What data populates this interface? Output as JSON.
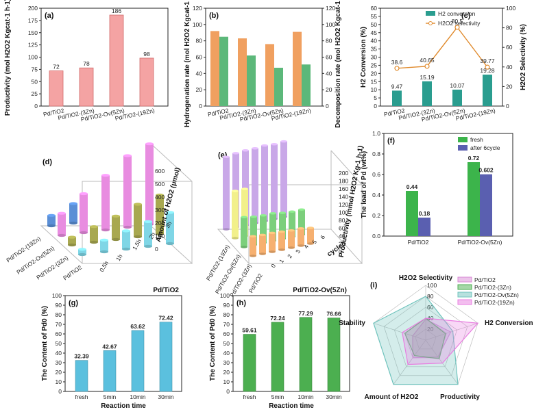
{
  "chart_data": [
    {
      "id": "a",
      "panel_label": "(a)",
      "type": "bar",
      "categories": [
        "Pd/TiO2",
        "Pd/TiO2-(3Zn)",
        "Pd/TiO2-Ov(5Zn)",
        "Pd/TiO2-(19Zn)"
      ],
      "values": [
        72,
        78,
        186,
        98
      ],
      "value_labels": [
        "72",
        "78",
        "186",
        "98"
      ],
      "ylabel": "Productivity (mol H2O2 Kgcat-1 h-1)",
      "ylim": [
        0,
        200
      ],
      "yticks": [
        "0",
        "25",
        "50",
        "75",
        "100",
        "125",
        "150",
        "175",
        "200"
      ],
      "color": "#f4a3a3"
    },
    {
      "id": "b",
      "panel_label": "(b)",
      "type": "bar",
      "categories": [
        "Pd/TiO2",
        "Pd/TiO2-(3Zn)",
        "Pd/TiO2-Ov(5Zn)",
        "Pd/TiO2-(19Zn)"
      ],
      "series": [
        {
          "name": "Hydrogenation rate",
          "values": [
            92,
            83,
            76,
            91
          ],
          "color": "#f0a060"
        },
        {
          "name": "Decomposition rate",
          "values": [
            85,
            62,
            47,
            51
          ],
          "color": "#5cb87a"
        }
      ],
      "ylabel_left": "Hydrogenation rate (mol H2O2 Kgcat-1 h-1)",
      "ylabel_right": "Decomposition rate (mol H2O2 Kgcat-1 h-1)",
      "ylim": [
        0,
        120
      ],
      "yticks_left": [
        "0",
        "20",
        "40",
        "60",
        "80",
        "100",
        "120"
      ],
      "yticks_right": [
        "0",
        "20",
        "40",
        "60",
        "80",
        "100",
        "120"
      ]
    },
    {
      "id": "c",
      "panel_label": "(c)",
      "type": "bar+line",
      "categories": [
        "Pd/TiO2",
        "Pd/TiO2-(3Zn)",
        "Pd/TiO2-Ov(5Zn)",
        "Pd/TiO2-(19Zn)"
      ],
      "bar_values": [
        9.47,
        15.19,
        10.07,
        19.28
      ],
      "bar_labels": [
        "9.47",
        "15.19",
        "10.07",
        "19.28"
      ],
      "line_values": [
        38.6,
        40.65,
        80.5,
        39.77
      ],
      "line_labels": [
        "38.6",
        "40.65",
        "80.5",
        "39.77"
      ],
      "legend": [
        "H2 conversion",
        "H2O2 selectivity"
      ],
      "ylabel_left": "H2 Conversion (%)",
      "ylabel_right": "H2O2 Selectivity (%)",
      "ylim_left": [
        0,
        60
      ],
      "ylim_right": [
        0,
        100
      ],
      "yticks_left": [
        "0",
        "5",
        "10",
        "15",
        "20",
        "25",
        "30",
        "35",
        "40",
        "45",
        "50",
        "55",
        "60"
      ],
      "yticks_right": [
        "0",
        "20",
        "40",
        "60",
        "80",
        "100"
      ],
      "bar_color": "#2a9d8f",
      "line_color": "#e08a2c"
    },
    {
      "id": "d",
      "panel_label": "(d)",
      "type": "bar3d",
      "rows": [
        "Pd/TiO2-(19Zn)",
        "Pd/TiO2-Ov(5Zn)",
        "Pd/TiO2-(3Zn)",
        "Pd/TiO2"
      ],
      "times": [
        "0.5h",
        "1h",
        "1.5h",
        "2h",
        "3h"
      ],
      "values": [
        [
          80,
          150,
          0,
          0,
          0
        ],
        [
          170,
          300,
          420,
          550,
          620
        ],
        [
          60,
          120,
          180,
          250,
          300
        ],
        [
          40,
          90,
          140,
          190,
          240
        ]
      ],
      "zlabel": "Amount of H2O2 (μmol)",
      "zticks": [
        "0",
        "100",
        "200",
        "300",
        "400",
        "500",
        "600"
      ]
    },
    {
      "id": "e",
      "panel_label": "(e)",
      "type": "bar3d",
      "rows": [
        "Pd/TiO2-(19Zn)",
        "Pd/TiO2-Ov(5Zn)",
        "Pd/TiO2-(3Zn)",
        "Pd/TiO2"
      ],
      "cycles": [
        "0",
        "1",
        "2",
        "3",
        "4",
        "5",
        "6"
      ],
      "xlabel": "cycle",
      "zlabel": "Productivity (mmol H2O2 Kg-1 h-1)",
      "zticks": [
        "0",
        "20",
        "40",
        "60",
        "80",
        "100",
        "120",
        "140",
        "160",
        "180",
        "200"
      ]
    },
    {
      "id": "f",
      "panel_label": "(f)",
      "type": "bar",
      "categories": [
        "Pd/TiO2",
        "Pd/TiO2-Ov(5Zn)"
      ],
      "series": [
        {
          "name": "fresh",
          "values": [
            0.44,
            0.72
          ],
          "labels": [
            "0.44",
            "0.72"
          ],
          "color": "#3cb44b"
        },
        {
          "name": "after 6cycle",
          "values": [
            0.18,
            0.602
          ],
          "labels": [
            "0.18",
            "0.602"
          ],
          "color": "#5a5fb0"
        }
      ],
      "ylabel": "The load of Pd (wt%)",
      "ylim": [
        0,
        1.0
      ],
      "yticks": [
        "0.0",
        "0.2",
        "0.4",
        "0.6",
        "0.8",
        "1.0"
      ]
    },
    {
      "id": "g",
      "panel_label": "(g)",
      "type": "bar",
      "subtitle": "Pd/TiO2",
      "categories": [
        "fresh",
        "5min",
        "10min",
        "30min"
      ],
      "values": [
        32.39,
        42.67,
        63.62,
        72.42
      ],
      "value_labels": [
        "32.39",
        "42.67",
        "63.62",
        "72.42"
      ],
      "xlabel": "Reaction time",
      "ylabel": "The Content of Pd0 (%)",
      "ylim": [
        0,
        100
      ],
      "yticks": [
        "0",
        "10",
        "20",
        "30",
        "40",
        "50",
        "60",
        "70",
        "80",
        "90",
        "100"
      ],
      "color": "#5bc0de"
    },
    {
      "id": "h",
      "panel_label": "(h)",
      "type": "bar",
      "subtitle": "Pd/TiO2-Ov(5Zn)",
      "categories": [
        "fresh",
        "5min",
        "10min",
        "30min"
      ],
      "values": [
        59.61,
        72.24,
        77.29,
        76.66
      ],
      "value_labels": [
        "59.61",
        "72.24",
        "77.29",
        "76.66"
      ],
      "xlabel": "Reaction time",
      "ylabel": "The Content of Pd0 (%)",
      "ylim": [
        0,
        100
      ],
      "yticks": [
        "0",
        "10",
        "20",
        "30",
        "40",
        "50",
        "60",
        "70",
        "80",
        "90",
        "100"
      ],
      "color": "#4caf50"
    },
    {
      "id": "i",
      "panel_label": "(i)",
      "type": "radar",
      "axes": [
        "H2O2 Selectivity",
        "H2 Conversion",
        "Productivity",
        "Amount of H2O2",
        "Stability"
      ],
      "rticks": [
        "20",
        "40",
        "60",
        "80",
        "100"
      ],
      "series": [
        {
          "name": "Pd/TiO2",
          "values": [
            38,
            48,
            38,
            40,
            25
          ],
          "color": "#d98ad6"
        },
        {
          "name": "Pd/TiO2-(3Zn)",
          "values": [
            40,
            38,
            42,
            35,
            40
          ],
          "color": "#4caf50"
        },
        {
          "name": "Pd/TiO2-Ov(5Zn)",
          "values": [
            80,
            52,
            100,
            100,
            100
          ],
          "color": "#6fc3bd"
        },
        {
          "name": "Pd/TiO2-(19Zn)",
          "values": [
            40,
            100,
            52,
            55,
            45
          ],
          "color": "#e87de0"
        }
      ]
    }
  ]
}
